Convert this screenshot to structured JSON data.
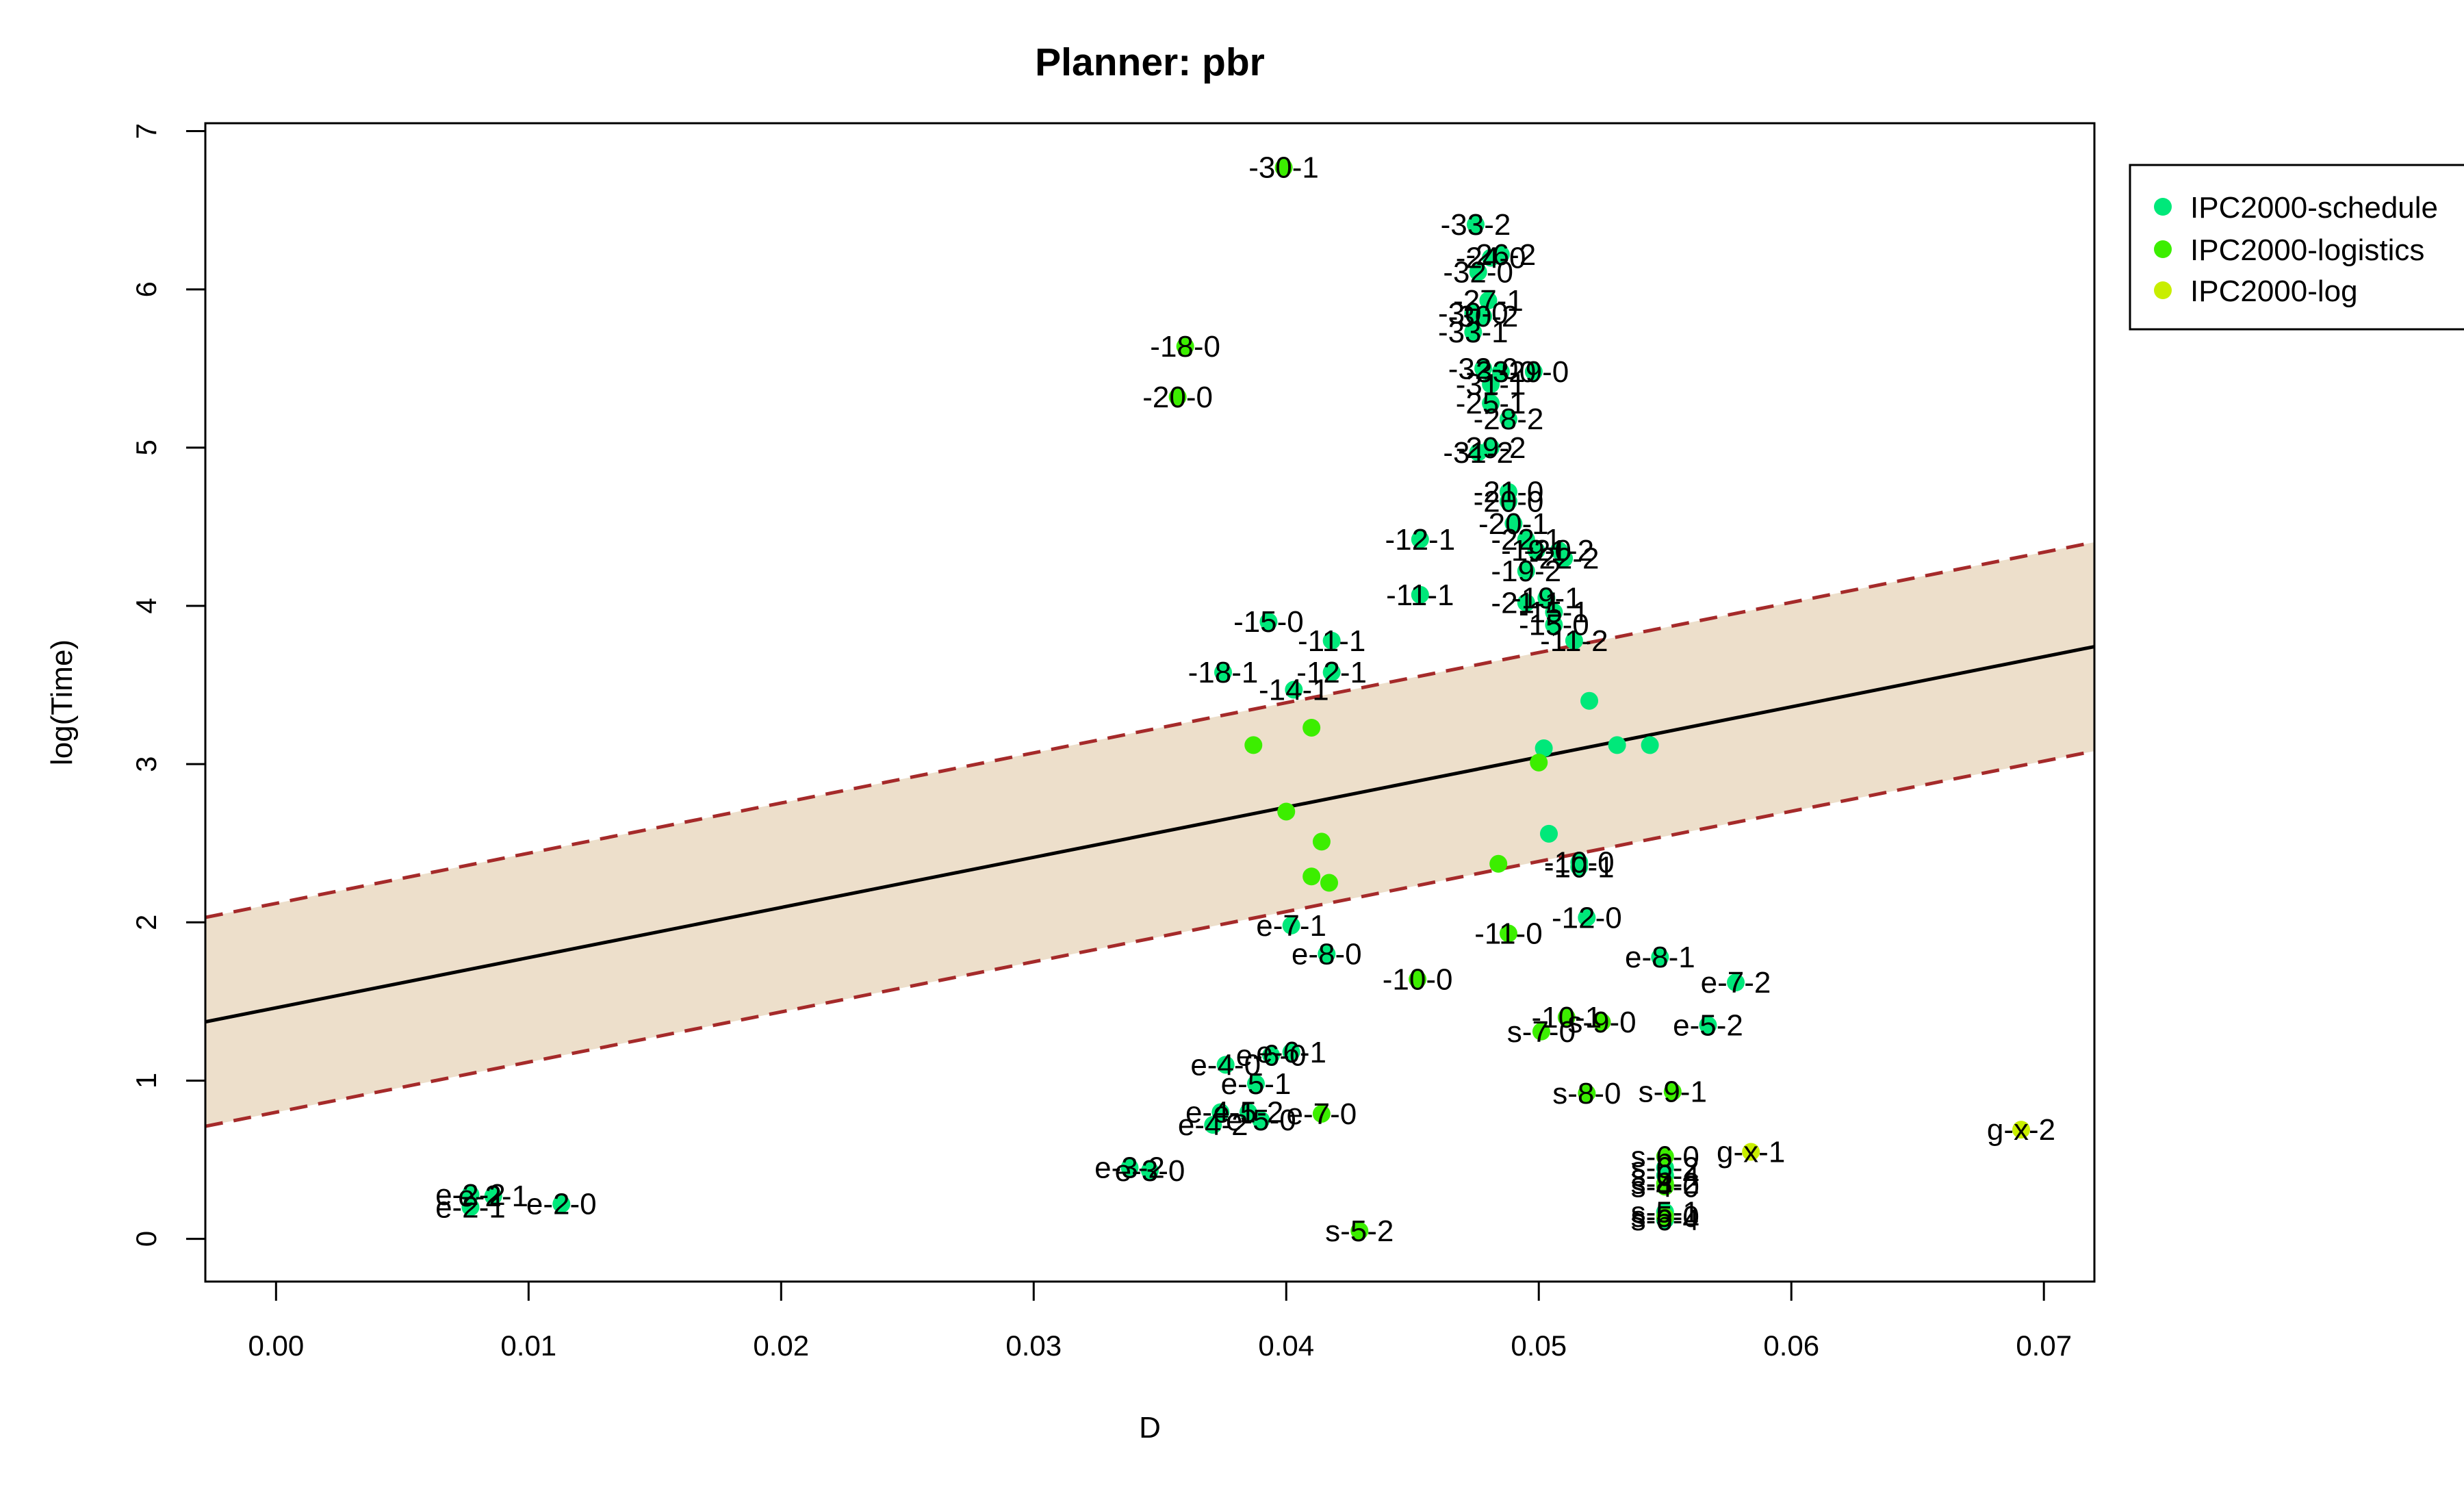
{
  "chart_data": {
    "type": "scatter",
    "title": "Planner: pbr",
    "xlabel": "D",
    "ylabel": "log(Time)",
    "xlim": [
      -0.0028,
      0.072
    ],
    "ylim": [
      -0.27,
      7.05
    ],
    "xticks": [
      "0.00",
      "0.01",
      "0.02",
      "0.03",
      "0.04",
      "0.05",
      "0.06",
      "0.07"
    ],
    "yticks": [
      "0",
      "1",
      "2",
      "3",
      "4",
      "5",
      "6",
      "7"
    ],
    "legend_position": "top-right",
    "regression": {
      "intercept": 1.46,
      "slope": 31.7,
      "band_upper_intercept": 2.12,
      "band_lower_intercept": 0.8,
      "band_fill": "#eddfcb",
      "line_color": "#000000",
      "bound_color": "#a52a2a"
    },
    "series": [
      {
        "name": "IPC2000-schedule",
        "color": "#00e87a",
        "points": [
          {
            "x": 0.0475,
            "y": 6.41,
            "label": "-33-2"
          },
          {
            "x": 0.0476,
            "y": 6.11,
            "label": "-32-0"
          },
          {
            "x": 0.0481,
            "y": 6.2,
            "label": "-24-0"
          },
          {
            "x": 0.0485,
            "y": 6.22,
            "label": "-26-2"
          },
          {
            "x": 0.048,
            "y": 5.93,
            "label": "-27-1"
          },
          {
            "x": 0.0474,
            "y": 5.85,
            "label": "-30-0"
          },
          {
            "x": 0.0478,
            "y": 5.83,
            "label": "-30-2"
          },
          {
            "x": 0.0474,
            "y": 5.73,
            "label": "-33-1"
          },
          {
            "x": 0.0478,
            "y": 5.5,
            "label": "-32-0"
          },
          {
            "x": 0.0485,
            "y": 5.48,
            "label": "-33-0"
          },
          {
            "x": 0.0498,
            "y": 5.48,
            "label": "-29-0"
          },
          {
            "x": 0.0481,
            "y": 5.4,
            "label": "-31-1"
          },
          {
            "x": 0.0481,
            "y": 5.28,
            "label": "-25-1"
          },
          {
            "x": 0.0488,
            "y": 5.18,
            "label": "-28-2"
          },
          {
            "x": 0.0476,
            "y": 4.97,
            "label": "-31-2"
          },
          {
            "x": 0.0481,
            "y": 5.0,
            "label": "-29-2"
          },
          {
            "x": 0.0488,
            "y": 4.72,
            "label": "-21-0"
          },
          {
            "x": 0.0488,
            "y": 4.66,
            "label": "-20-0"
          },
          {
            "x": 0.049,
            "y": 4.52,
            "label": "-20-1"
          },
          {
            "x": 0.0495,
            "y": 4.42,
            "label": "-22-1"
          },
          {
            "x": 0.0499,
            "y": 4.35,
            "label": "-19-0"
          },
          {
            "x": 0.0508,
            "y": 4.35,
            "label": "-21-2"
          },
          {
            "x": 0.051,
            "y": 4.3,
            "label": "-22-2"
          },
          {
            "x": 0.0495,
            "y": 4.22,
            "label": "-19-2"
          },
          {
            "x": 0.0495,
            "y": 4.02,
            "label": "-21-1"
          },
          {
            "x": 0.0503,
            "y": 4.05,
            "label": "-19-1"
          },
          {
            "x": 0.0506,
            "y": 3.96,
            "label": "-15-1"
          },
          {
            "x": 0.0506,
            "y": 3.88,
            "label": "-15-0"
          },
          {
            "x": 0.0514,
            "y": 3.78,
            "label": "-11-2"
          },
          {
            "x": 0.0453,
            "y": 4.42,
            "label": "-12-1"
          },
          {
            "x": 0.0453,
            "y": 4.07,
            "label": "-11-1"
          },
          {
            "x": 0.0393,
            "y": 3.9,
            "label": "-15-0"
          },
          {
            "x": 0.0418,
            "y": 3.78,
            "label": "-11-1"
          },
          {
            "x": 0.0375,
            "y": 3.58,
            "label": "-18-1"
          },
          {
            "x": 0.0418,
            "y": 3.58,
            "label": "-12-1"
          },
          {
            "x": 0.0403,
            "y": 3.47,
            "label": "-14-1"
          },
          {
            "x": 0.052,
            "y": 3.4,
            "label": ""
          },
          {
            "x": 0.0531,
            "y": 3.12,
            "label": ""
          },
          {
            "x": 0.0544,
            "y": 3.12,
            "label": ""
          },
          {
            "x": 0.0502,
            "y": 3.1,
            "label": ""
          },
          {
            "x": 0.0504,
            "y": 2.56,
            "label": ""
          },
          {
            "x": 0.0516,
            "y": 2.38,
            "label": "-10-0"
          },
          {
            "x": 0.0516,
            "y": 2.35,
            "label": "-10-1"
          },
          {
            "x": 0.0519,
            "y": 2.03,
            "label": "-12-0"
          },
          {
            "x": 0.0402,
            "y": 1.98,
            "label": "e-7-1"
          },
          {
            "x": 0.0416,
            "y": 1.8,
            "label": "e-8-0"
          },
          {
            "x": 0.0548,
            "y": 1.78,
            "label": "e-8-1"
          },
          {
            "x": 0.0578,
            "y": 1.62,
            "label": "e-7-2"
          },
          {
            "x": 0.0567,
            "y": 1.35,
            "label": "e-5-2"
          },
          {
            "x": 0.0376,
            "y": 1.1,
            "label": "e-4-0"
          },
          {
            "x": 0.0394,
            "y": 1.16,
            "label": "e-6-0"
          },
          {
            "x": 0.0402,
            "y": 1.18,
            "label": "e-6-1"
          },
          {
            "x": 0.0388,
            "y": 0.98,
            "label": "e-5-1"
          },
          {
            "x": 0.0374,
            "y": 0.8,
            "label": "e-4-1"
          },
          {
            "x": 0.0385,
            "y": 0.8,
            "label": "e-5-2"
          },
          {
            "x": 0.039,
            "y": 0.75,
            "label": "e-5-0"
          },
          {
            "x": 0.0371,
            "y": 0.72,
            "label": "e-4-2"
          },
          {
            "x": 0.0338,
            "y": 0.45,
            "label": "e-3-2"
          },
          {
            "x": 0.0346,
            "y": 0.43,
            "label": "e-3-0"
          },
          {
            "x": 0.0077,
            "y": 0.28,
            "label": "e-2-2"
          },
          {
            "x": 0.0086,
            "y": 0.27,
            "label": "e-2-1"
          },
          {
            "x": 0.0077,
            "y": 0.2,
            "label": "e-2-1"
          },
          {
            "x": 0.0113,
            "y": 0.22,
            "label": "e-2-0"
          },
          {
            "x": 0.055,
            "y": 0.45,
            "label": "s-6-2"
          },
          {
            "x": 0.055,
            "y": 0.4,
            "label": "s-6-4"
          },
          {
            "x": 0.055,
            "y": 0.17,
            "label": "s-5-1"
          },
          {
            "x": 0.055,
            "y": 0.12,
            "label": "s-6-4"
          }
        ]
      },
      {
        "name": "IPC2000-logistics",
        "color": "#3cee00",
        "points": [
          {
            "x": 0.0399,
            "y": 6.77,
            "label": "-30-1"
          },
          {
            "x": 0.036,
            "y": 5.64,
            "label": "-18-0"
          },
          {
            "x": 0.0357,
            "y": 5.32,
            "label": "-20-0"
          },
          {
            "x": 0.0387,
            "y": 3.12,
            "label": ""
          },
          {
            "x": 0.041,
            "y": 3.23,
            "label": ""
          },
          {
            "x": 0.05,
            "y": 3.01,
            "label": ""
          },
          {
            "x": 0.04,
            "y": 2.7,
            "label": ""
          },
          {
            "x": 0.0414,
            "y": 2.51,
            "label": ""
          },
          {
            "x": 0.041,
            "y": 2.29,
            "label": ""
          },
          {
            "x": 0.0417,
            "y": 2.25,
            "label": ""
          },
          {
            "x": 0.0484,
            "y": 2.37,
            "label": ""
          },
          {
            "x": 0.0488,
            "y": 1.93,
            "label": "-11-0"
          },
          {
            "x": 0.0452,
            "y": 1.64,
            "label": "-10-0"
          },
          {
            "x": 0.0414,
            "y": 0.79,
            "label": "e-7-0"
          },
          {
            "x": 0.0501,
            "y": 1.31,
            "label": "s-7-0"
          },
          {
            "x": 0.0511,
            "y": 1.4,
            "label": "-10-1"
          },
          {
            "x": 0.0525,
            "y": 1.37,
            "label": "s-9-0"
          },
          {
            "x": 0.0519,
            "y": 0.92,
            "label": "s-8-0"
          },
          {
            "x": 0.0553,
            "y": 0.93,
            "label": "s-9-1"
          },
          {
            "x": 0.055,
            "y": 0.52,
            "label": "s-6-0"
          },
          {
            "x": 0.055,
            "y": 0.35,
            "label": "s-8-2"
          },
          {
            "x": 0.055,
            "y": 0.33,
            "label": "s-4-0"
          },
          {
            "x": 0.055,
            "y": 0.14,
            "label": "s-5-0"
          },
          {
            "x": 0.0429,
            "y": 0.05,
            "label": "s-5-2"
          }
        ]
      },
      {
        "name": "IPC2000-log",
        "color": "#c8ee00",
        "points": [
          {
            "x": 0.0691,
            "y": 0.69,
            "label": "g-x-2"
          },
          {
            "x": 0.0584,
            "y": 0.55,
            "label": "g-x-1"
          }
        ]
      }
    ]
  }
}
